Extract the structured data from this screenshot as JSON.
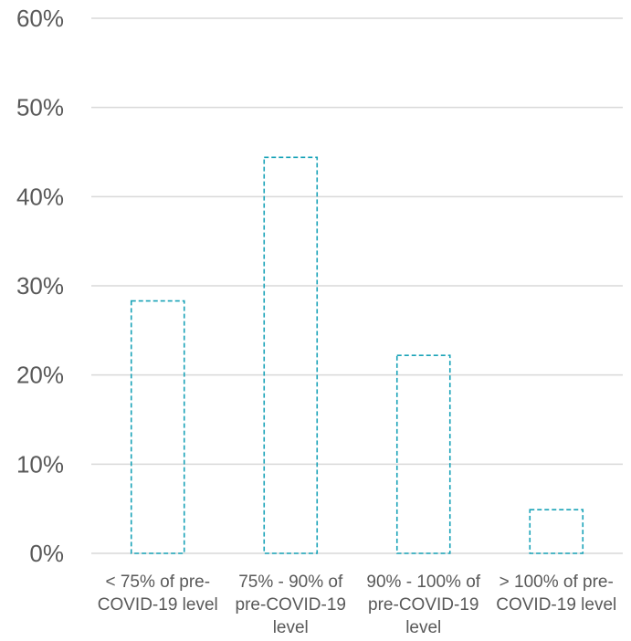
{
  "colors": {
    "bar_outline": "#1aa3b8",
    "gridline": "#d9d9d9",
    "axis_text": "#595959"
  },
  "chart_data": {
    "type": "bar",
    "categories": [
      "< 75% of pre-COVID-19 level",
      "75% - 90% of pre-COVID-19 level",
      "90% - 100% of pre-COVID-19 level",
      "> 100% of pre-COVID-19 level"
    ],
    "category_label_lines": [
      [
        "< 75% of pre-",
        "COVID-19 level"
      ],
      [
        "75% - 90%  of",
        "pre-COVID-19",
        "level"
      ],
      [
        "90% - 100%  of",
        "pre-COVID-19",
        "level"
      ],
      [
        "> 100%  of pre-",
        "COVID-19 level"
      ]
    ],
    "values": [
      28.3,
      44.4,
      22.2,
      4.9
    ],
    "value_unit": "%",
    "title": "",
    "xlabel": "",
    "ylabel": "",
    "ylim": [
      0,
      60
    ],
    "yticks": [
      0,
      10,
      20,
      30,
      40,
      50,
      60
    ],
    "ytick_labels": [
      "0%",
      "10%",
      "20%",
      "30%",
      "40%",
      "50%",
      "60%"
    ],
    "grid": true,
    "legend": "none",
    "bar_style": "dashed outline, no fill"
  }
}
